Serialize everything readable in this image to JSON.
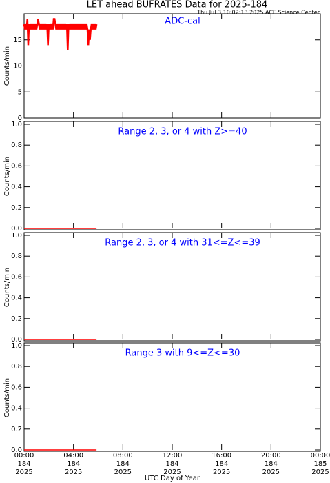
{
  "header": {
    "title": "LET ahead BUFRATES Data for 2025-184",
    "subtitle": "Thu Jul  3 10:02:13 2025 ACE Science Center"
  },
  "chart_data": [
    {
      "type": "line",
      "title": "ADC-cal",
      "ylabel": "Counts/min",
      "color": "#ff0000",
      "xlim": [
        0,
        1440
      ],
      "xticks": [
        0,
        240,
        480,
        720,
        960,
        1200,
        1440
      ],
      "ylim": [
        0,
        20
      ],
      "yticks": [
        0,
        5,
        10,
        15
      ],
      "x": [
        0,
        4,
        8,
        12,
        16,
        20,
        24,
        28,
        32,
        36,
        40,
        44,
        48,
        52,
        56,
        60,
        64,
        68,
        72,
        76,
        80,
        84,
        88,
        92,
        96,
        100,
        104,
        108,
        112,
        116,
        120,
        124,
        128,
        132,
        136,
        140,
        144,
        148,
        152,
        156,
        160,
        164,
        168,
        172,
        176,
        180,
        184,
        188,
        192,
        196,
        200,
        204,
        208,
        212,
        216,
        220,
        224,
        228,
        232,
        236,
        240,
        244,
        248,
        252,
        256,
        260,
        264,
        268,
        272,
        276,
        280,
        284,
        288,
        292,
        296,
        300,
        304,
        308,
        312,
        316,
        320,
        324,
        328,
        332,
        336,
        340,
        344,
        348,
        352
      ],
      "values": [
        18,
        17,
        18,
        17,
        19,
        14,
        18,
        17,
        18,
        17,
        18,
        17,
        18,
        17,
        18,
        17,
        18,
        19,
        18,
        17,
        18,
        17,
        18,
        17,
        18,
        17,
        18,
        17,
        18,
        14,
        18,
        17,
        18,
        17,
        18,
        17,
        19,
        19,
        18,
        17,
        18,
        17,
        18,
        17,
        18,
        17,
        18,
        17,
        18,
        17,
        18,
        17,
        18,
        13,
        18,
        17,
        18,
        17,
        18,
        17,
        18,
        17,
        18,
        17,
        18,
        17,
        18,
        17,
        18,
        17,
        18,
        17,
        18,
        17,
        18,
        17,
        18,
        17,
        14,
        17,
        15,
        17,
        18,
        17,
        18,
        17,
        18,
        17,
        18
      ]
    },
    {
      "type": "line",
      "title": "Range 2, 3, or 4 with Z>=40",
      "ylabel": "Counts/min",
      "color": "#ff0000",
      "xlim": [
        0,
        1440
      ],
      "xticks": [
        0,
        240,
        480,
        720,
        960,
        1200,
        1440
      ],
      "ylim": [
        0,
        1
      ],
      "yticks": [
        {
          "value": 0,
          "label": "0.0"
        },
        0.2,
        0.4,
        0.6,
        0.8,
        {
          "value": 1,
          "label": "1.0"
        }
      ],
      "x": [
        0,
        8,
        16,
        24,
        32,
        40,
        48,
        56,
        64,
        72,
        80,
        88,
        96,
        104,
        112,
        120,
        128,
        136,
        144,
        152,
        160,
        168,
        176,
        184,
        192,
        200,
        208,
        216,
        224,
        232,
        240,
        248,
        256,
        264,
        272,
        280,
        288,
        296,
        304,
        312,
        320,
        328,
        336,
        344,
        352
      ],
      "values": [
        0,
        0,
        0,
        0,
        0,
        0,
        0,
        0,
        0,
        0,
        0,
        0,
        0,
        0,
        0,
        0,
        0,
        0,
        0,
        0,
        0,
        0,
        0,
        0,
        0,
        0,
        0,
        0,
        0,
        0,
        0,
        0,
        0,
        0,
        0,
        0,
        0,
        0,
        0,
        0,
        0,
        0,
        0,
        0,
        0
      ]
    },
    {
      "type": "line",
      "title": "Range 2, 3, or 4 with 31<=Z<=39",
      "ylabel": "Counts/min",
      "color": "#ff0000",
      "xlim": [
        0,
        1440
      ],
      "xticks": [
        0,
        240,
        480,
        720,
        960,
        1200,
        1440
      ],
      "ylim": [
        0,
        1
      ],
      "yticks": [
        {
          "value": 0,
          "label": "0.0"
        },
        0.2,
        0.4,
        0.6,
        0.8,
        {
          "value": 1,
          "label": "1.0"
        }
      ],
      "x": [
        0,
        8,
        16,
        24,
        32,
        40,
        48,
        56,
        64,
        72,
        80,
        88,
        96,
        104,
        112,
        120,
        128,
        136,
        144,
        152,
        160,
        168,
        176,
        184,
        192,
        200,
        208,
        216,
        224,
        232,
        240,
        248,
        256,
        264,
        272,
        280,
        288,
        296,
        304,
        312,
        320,
        328,
        336,
        344,
        352
      ],
      "values": [
        0,
        0,
        0,
        0,
        0,
        0,
        0,
        0,
        0,
        0,
        0,
        0,
        0,
        0,
        0,
        0,
        0,
        0,
        0,
        0,
        0,
        0,
        0,
        0,
        0,
        0,
        0,
        0,
        0,
        0,
        0,
        0,
        0,
        0,
        0,
        0,
        0,
        0,
        0,
        0,
        0,
        0,
        0,
        0,
        0
      ]
    },
    {
      "type": "line",
      "title": "Range 3 with 9<=Z<=30",
      "ylabel": "Counts/min",
      "xlabel": "UTC Day of Year",
      "color": "#ff0000",
      "xlim": [
        0,
        1440
      ],
      "xticks": [
        {
          "value": 0,
          "label": [
            "00:00",
            "184",
            "2025"
          ]
        },
        {
          "value": 240,
          "label": [
            "04:00",
            "184",
            "2025"
          ]
        },
        {
          "value": 480,
          "label": [
            "08:00",
            "184",
            "2025"
          ]
        },
        {
          "value": 720,
          "label": [
            "12:00",
            "184",
            "2025"
          ]
        },
        {
          "value": 960,
          "label": [
            "16:00",
            "184",
            "2025"
          ]
        },
        {
          "value": 1200,
          "label": [
            "20:00",
            "184",
            "2025"
          ]
        },
        {
          "value": 1440,
          "label": [
            "00:00",
            "185",
            "2025"
          ]
        }
      ],
      "ylim": [
        0,
        1
      ],
      "yticks": [
        {
          "value": 0,
          "label": "0.0"
        },
        0.2,
        0.4,
        0.6,
        0.8,
        {
          "value": 1,
          "label": "1.0"
        }
      ],
      "x": [
        0,
        8,
        16,
        24,
        32,
        40,
        48,
        56,
        64,
        72,
        80,
        88,
        96,
        104,
        112,
        120,
        128,
        136,
        144,
        152,
        160,
        168,
        176,
        184,
        192,
        200,
        208,
        216,
        224,
        232,
        240,
        248,
        256,
        264,
        272,
        280,
        288,
        296,
        304,
        312,
        320,
        328,
        336,
        344,
        352
      ],
      "values": [
        0,
        0,
        0,
        0,
        0,
        0,
        0,
        0,
        0,
        0,
        0,
        0,
        0,
        0,
        0,
        0,
        0,
        0,
        0,
        0,
        0,
        0,
        0,
        0,
        0,
        0,
        0,
        0,
        0,
        0,
        0,
        0,
        0,
        0,
        0,
        0,
        0,
        0,
        0,
        0,
        0,
        0,
        0,
        0,
        0
      ]
    }
  ]
}
